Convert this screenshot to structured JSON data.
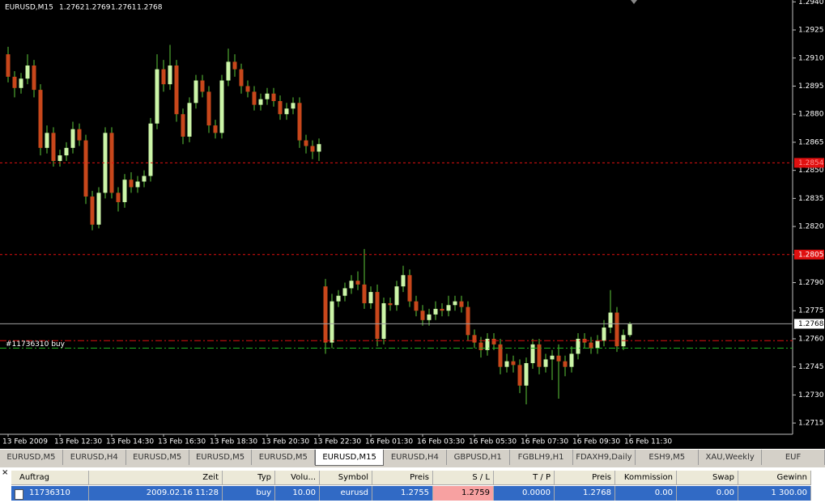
{
  "chart_data": {
    "type": "candlestick",
    "symbol": "EURUSD,M15",
    "categories": [
      "13 Feb 2009",
      null,
      null,
      null,
      null,
      null,
      null,
      null,
      "13 Feb 12:30",
      null,
      null,
      null,
      null,
      null,
      null,
      null,
      "13 Feb 14:30",
      null,
      null,
      null,
      null,
      null,
      null,
      null,
      "13 Feb 16:30",
      null,
      null,
      null,
      null,
      null,
      null,
      null,
      "13 Feb 18:30",
      null,
      null,
      null,
      null,
      null,
      null,
      null,
      "13 Feb 20:30",
      null,
      null,
      null,
      null,
      null,
      null,
      null,
      "13 Feb 22:30",
      null,
      null,
      null,
      null,
      null,
      null,
      null,
      "16 Feb 01:30",
      null,
      null,
      null,
      null,
      null,
      null,
      null,
      "16 Feb 03:30",
      null,
      null,
      null,
      null,
      null,
      null,
      null,
      "16 Feb 05:30",
      null,
      null,
      null,
      null,
      null,
      null,
      null,
      "16 Feb 07:30",
      null,
      null,
      null,
      null,
      null,
      null,
      null,
      "16 Feb 09:30",
      null,
      null,
      null,
      null,
      null,
      null,
      null,
      "16 Feb 11:30"
    ],
    "open": [
      1.2912,
      1.29,
      1.2894,
      1.2899,
      1.2906,
      1.2893,
      1.2862,
      1.287,
      1.2855,
      1.2858,
      1.2862,
      1.2872,
      1.2866,
      1.2836,
      1.2821,
      1.2838,
      1.287,
      1.2838,
      1.2833,
      1.2845,
      1.2841,
      1.2844,
      1.2847,
      1.2875,
      1.2904,
      1.2896,
      1.2906,
      1.288,
      1.2868,
      1.2886,
      1.2898,
      1.2892,
      1.2874,
      1.287,
      1.2898,
      1.2908,
      1.2904,
      1.2895,
      1.2892,
      1.2885,
      1.2888,
      1.2891,
      1.2887,
      1.288,
      1.2883,
      1.2886,
      1.2866,
      1.2863,
      1.286,
      1.2788,
      1.2758,
      1.278,
      1.2783,
      1.2787,
      1.2791,
      1.2789,
      1.2779,
      1.2785,
      1.276,
      1.2779,
      1.2778,
      1.2788,
      1.2794,
      1.278,
      1.2775,
      1.277,
      1.2773,
      1.2776,
      1.2775,
      1.2778,
      1.278,
      1.2777,
      1.2762,
      1.2758,
      1.2754,
      1.276,
      1.2757,
      1.2745,
      1.2748,
      1.2746,
      1.2735,
      1.2747,
      1.2757,
      1.2745,
      1.2749,
      1.2751,
      1.2748,
      1.2745,
      1.2752,
      1.276,
      1.2758,
      1.2755,
      1.2759,
      1.2766,
      1.2774,
      1.2756,
      1.2762
    ],
    "high": [
      1.2916,
      1.2903,
      1.2902,
      1.2912,
      1.2909,
      1.2896,
      1.2874,
      1.2873,
      1.2861,
      1.2865,
      1.2876,
      1.2875,
      1.2869,
      1.2839,
      1.2841,
      1.2873,
      1.2873,
      1.2841,
      1.2848,
      1.2849,
      1.2847,
      1.285,
      1.2878,
      1.2912,
      1.2909,
      1.2917,
      1.2909,
      1.2883,
      1.2889,
      1.2901,
      1.2901,
      1.2895,
      1.2877,
      1.2901,
      1.2915,
      1.2912,
      1.2907,
      1.2898,
      1.2895,
      1.2891,
      1.2894,
      1.2894,
      1.289,
      1.2886,
      1.2889,
      1.2889,
      1.2869,
      1.2866,
      1.2867,
      1.2792,
      1.2784,
      1.2786,
      1.279,
      1.2794,
      1.2796,
      1.2808,
      1.2788,
      1.2789,
      1.2782,
      1.2782,
      1.2791,
      1.2799,
      1.2797,
      1.2783,
      1.2778,
      1.2776,
      1.278,
      1.2779,
      1.2783,
      1.2783,
      1.2783,
      1.278,
      1.2765,
      1.2761,
      1.2763,
      1.2763,
      1.276,
      1.2752,
      1.2751,
      1.2749,
      1.275,
      1.276,
      1.276,
      1.2752,
      1.2754,
      1.2757,
      1.2751,
      1.2756,
      1.2763,
      1.2763,
      1.2761,
      1.2762,
      1.277,
      1.2786,
      1.2777,
      1.2765,
      1.2769
    ],
    "low": [
      1.2897,
      1.2889,
      1.2891,
      1.2896,
      1.2889,
      1.2858,
      1.2859,
      1.2852,
      1.2852,
      1.2855,
      1.2859,
      1.2863,
      1.2832,
      1.2818,
      1.2819,
      1.2835,
      1.2835,
      1.2828,
      1.283,
      1.2838,
      1.2838,
      1.2841,
      1.2844,
      1.2872,
      1.2892,
      1.2893,
      1.2876,
      1.2864,
      1.2865,
      1.2883,
      1.2889,
      1.287,
      1.2867,
      1.2867,
      1.2895,
      1.29,
      1.2891,
      1.2889,
      1.2882,
      1.2882,
      1.2885,
      1.2884,
      1.2877,
      1.2877,
      1.288,
      1.2862,
      1.2859,
      1.2856,
      1.2855,
      1.2752,
      1.2755,
      1.2777,
      1.278,
      1.2784,
      1.2786,
      1.2776,
      1.2776,
      1.2756,
      1.2757,
      1.2775,
      1.2775,
      1.2785,
      1.2777,
      1.2772,
      1.2767,
      1.2767,
      1.277,
      1.2772,
      1.2772,
      1.2775,
      1.2774,
      1.2759,
      1.2755,
      1.275,
      1.2751,
      1.2754,
      1.2741,
      1.2742,
      1.2742,
      1.2731,
      1.2725,
      1.2744,
      1.2741,
      1.2742,
      1.2738,
      1.2728,
      1.274,
      1.2742,
      1.2749,
      1.2755,
      1.2752,
      1.2752,
      1.2756,
      1.2763,
      1.2753,
      1.2754,
      1.2761
    ],
    "close": [
      1.29,
      1.2894,
      1.2899,
      1.2906,
      1.2893,
      1.2862,
      1.287,
      1.2855,
      1.2858,
      1.2862,
      1.2872,
      1.2866,
      1.2836,
      1.2821,
      1.2838,
      1.287,
      1.2838,
      1.2833,
      1.2845,
      1.2841,
      1.2844,
      1.2847,
      1.2875,
      1.2904,
      1.2896,
      1.2906,
      1.288,
      1.2868,
      1.2886,
      1.2898,
      1.2892,
      1.2874,
      1.287,
      1.2898,
      1.2908,
      1.2904,
      1.2895,
      1.2892,
      1.2885,
      1.2888,
      1.2891,
      1.2887,
      1.288,
      1.2883,
      1.2886,
      1.2866,
      1.2863,
      1.286,
      1.2864,
      1.2758,
      1.278,
      1.2783,
      1.2787,
      1.2791,
      1.2789,
      1.2779,
      1.2785,
      1.276,
      1.2779,
      1.2778,
      1.2788,
      1.2794,
      1.278,
      1.2775,
      1.277,
      1.2773,
      1.2776,
      1.2775,
      1.2778,
      1.278,
      1.2777,
      1.2762,
      1.2758,
      1.2754,
      1.276,
      1.2757,
      1.2745,
      1.2748,
      1.2746,
      1.2735,
      1.2747,
      1.2757,
      1.2745,
      1.2749,
      1.2751,
      1.2748,
      1.2745,
      1.2752,
      1.276,
      1.2758,
      1.2755,
      1.2759,
      1.2766,
      1.2774,
      1.2756,
      1.2762,
      1.2768
    ],
    "up_color": "#ccf5a8",
    "down_color": "#c8471b",
    "wick_color": "#5ec93a",
    "ylim": [
      1.2709,
      1.2941
    ],
    "yticks": [
      {
        "value": 1.294,
        "label": "1.2940"
      },
      1.2925,
      {
        "value": 1.291,
        "label": "1.2910"
      },
      1.2895,
      {
        "value": 1.288,
        "label": "1.2880"
      },
      1.2865,
      {
        "value": 1.285,
        "label": "1.2850"
      },
      1.2835,
      {
        "value": 1.282,
        "label": "1.2820"
      },
      1.2805,
      {
        "value": 1.279,
        "label": "1.2790"
      },
      1.2775,
      {
        "value": 1.276,
        "label": "1.2760"
      },
      1.2745,
      {
        "value": 1.273,
        "label": "1.2730"
      },
      1.2715
    ],
    "price_lines": [
      {
        "value": 1.2854,
        "color": "#e01010",
        "style": "dash",
        "box": "#e01010",
        "box_text": "#ff9090"
      },
      {
        "value": 1.2805,
        "color": "#e01010",
        "style": "dash",
        "box": "#e01010",
        "box_text": "#ffffff"
      },
      {
        "value": 1.2768,
        "color": "#a0a0a0",
        "style": "solid",
        "box": "#ffffff",
        "box_text": "#000000"
      }
    ],
    "order_lines": [
      {
        "value": 1.2759,
        "color": "#e01010"
      },
      {
        "value": 1.2755,
        "color": "#20b020"
      }
    ],
    "order_label": "#11736310 buy"
  },
  "tabs": {
    "items": [
      "EURUSD,M5",
      "EURUSD,H4",
      "EURUSD,M5",
      "EURUSD,M5",
      "EURUSD,M5",
      "EURUSD,M15",
      "EURUSD,H4",
      "GBPUSD,H1",
      "FGBLH9,H1",
      "FDAXH9,Daily",
      "ESH9,M5",
      "XAU,Weekly",
      "EUF"
    ],
    "active": 5
  },
  "table": {
    "headers": [
      "Auftrag",
      "Zeit",
      "Typ",
      "Volu...",
      "Symbol",
      "Preis",
      "S / L",
      "T / P",
      "Preis",
      "Kommission",
      "Swap",
      "Gewinn"
    ],
    "rows": [
      [
        "11736310",
        "2009.02.16 11:28",
        "buy",
        "10.00",
        "eurusd",
        "1.2755",
        "1.2759",
        "0.0000",
        "1.2768",
        "0.00",
        "0.00",
        "1 300.00"
      ]
    ]
  }
}
